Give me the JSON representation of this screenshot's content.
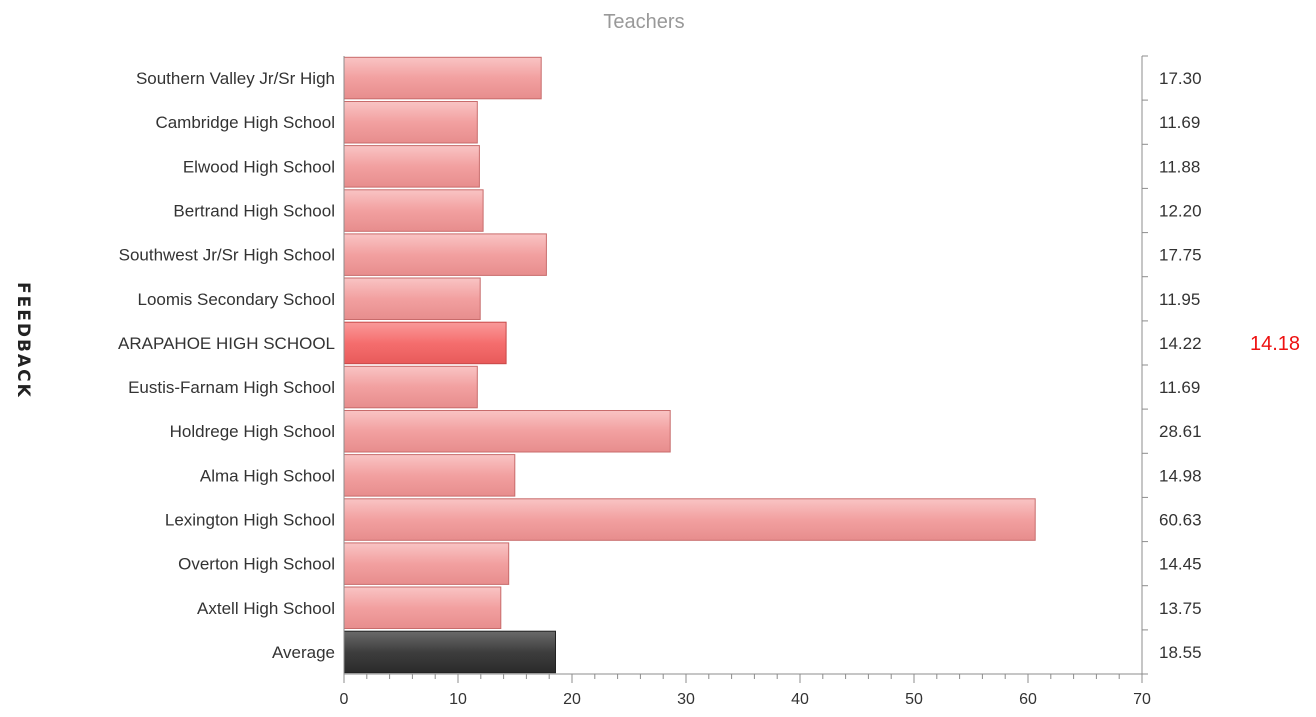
{
  "feedback_label": "FEEDBACK",
  "chart_data": {
    "type": "bar",
    "orientation": "horizontal",
    "title": "Teachers",
    "categories": [
      "Southern Valley Jr/Sr High",
      "Cambridge High School",
      "Elwood High School",
      "Bertrand High School",
      "Southwest Jr/Sr High School",
      "Loomis Secondary School",
      "ARAPAHOE HIGH SCHOOL",
      "Eustis-Farnam High School",
      "Holdrege High School",
      "Alma High School",
      "Lexington High School",
      "Overton High School",
      "Axtell High School",
      "Average"
    ],
    "values": [
      17.3,
      11.69,
      11.88,
      12.2,
      17.75,
      11.95,
      14.22,
      11.69,
      28.61,
      14.98,
      60.63,
      14.45,
      13.75,
      18.55
    ],
    "value_labels": [
      "17.30",
      "11.69",
      "11.88",
      "12.20",
      "17.75",
      "11.95",
      "14.22",
      "11.69",
      "28.61",
      "14.98",
      "60.63",
      "14.45",
      "13.75",
      "18.55"
    ],
    "highlight_index": 6,
    "average_index": 13,
    "extra_label": "14.18",
    "extra_label_color": "#ee1111",
    "xlim": [
      0,
      70
    ],
    "xticks": [
      "0",
      "10",
      "20",
      "30",
      "40",
      "50",
      "60",
      "70"
    ],
    "grid": false,
    "colors": {
      "bar": "#f2a0a0",
      "bar_border": "#c86b6b",
      "highlight": "#f56e6e",
      "highlight_border": "#c84848",
      "average": "#3e3e3e",
      "average_border": "#222222",
      "axis": "#8c8c8c"
    }
  }
}
